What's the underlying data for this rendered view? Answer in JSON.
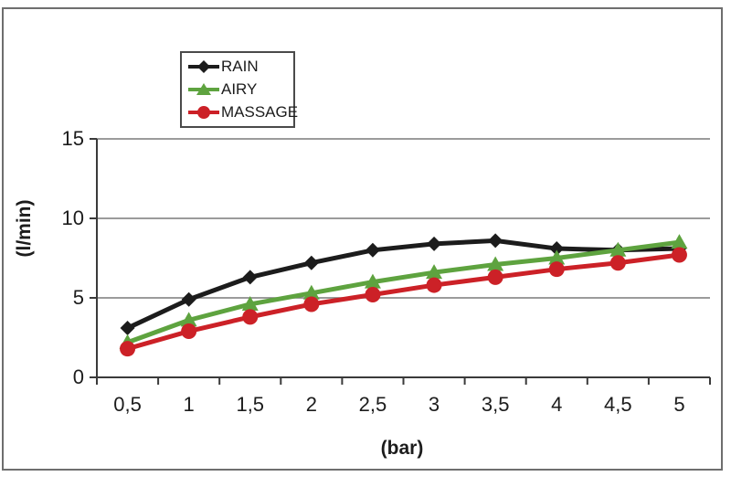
{
  "chart_data": {
    "type": "line",
    "title": "",
    "categories": [
      "0,5",
      "1",
      "1,5",
      "2",
      "2,5",
      "3",
      "3,5",
      "4",
      "4,5",
      "5"
    ],
    "series": [
      {
        "name": "RAIN",
        "color": "#1c1c1c",
        "marker": "diamond",
        "values": [
          3.1,
          4.9,
          6.3,
          7.2,
          8.0,
          8.4,
          8.6,
          8.1,
          8.0,
          8.1
        ]
      },
      {
        "name": "AIRY",
        "color": "#5ea33f",
        "marker": "triangle",
        "values": [
          2.2,
          3.6,
          4.6,
          5.3,
          6.0,
          6.6,
          7.1,
          7.5,
          8.0,
          8.5
        ]
      },
      {
        "name": "MASSAGE",
        "color": "#cc2127",
        "marker": "circle",
        "values": [
          1.8,
          2.9,
          3.8,
          4.6,
          5.2,
          5.8,
          6.3,
          6.8,
          7.2,
          7.7
        ]
      }
    ],
    "xlabel": "(bar)",
    "ylabel": "(l/min)",
    "ylim": [
      0,
      15
    ],
    "y_ticks": [
      "0",
      "5",
      "10",
      "15"
    ],
    "grid": true,
    "legend_position": "top-left"
  },
  "style": {
    "gridline_color": "#7a7a7a",
    "axis_color": "#3a3a3a",
    "frame_border_color": "#6e6e6e",
    "background_color": "#ffffff",
    "text_color": "#1c1c1c"
  }
}
